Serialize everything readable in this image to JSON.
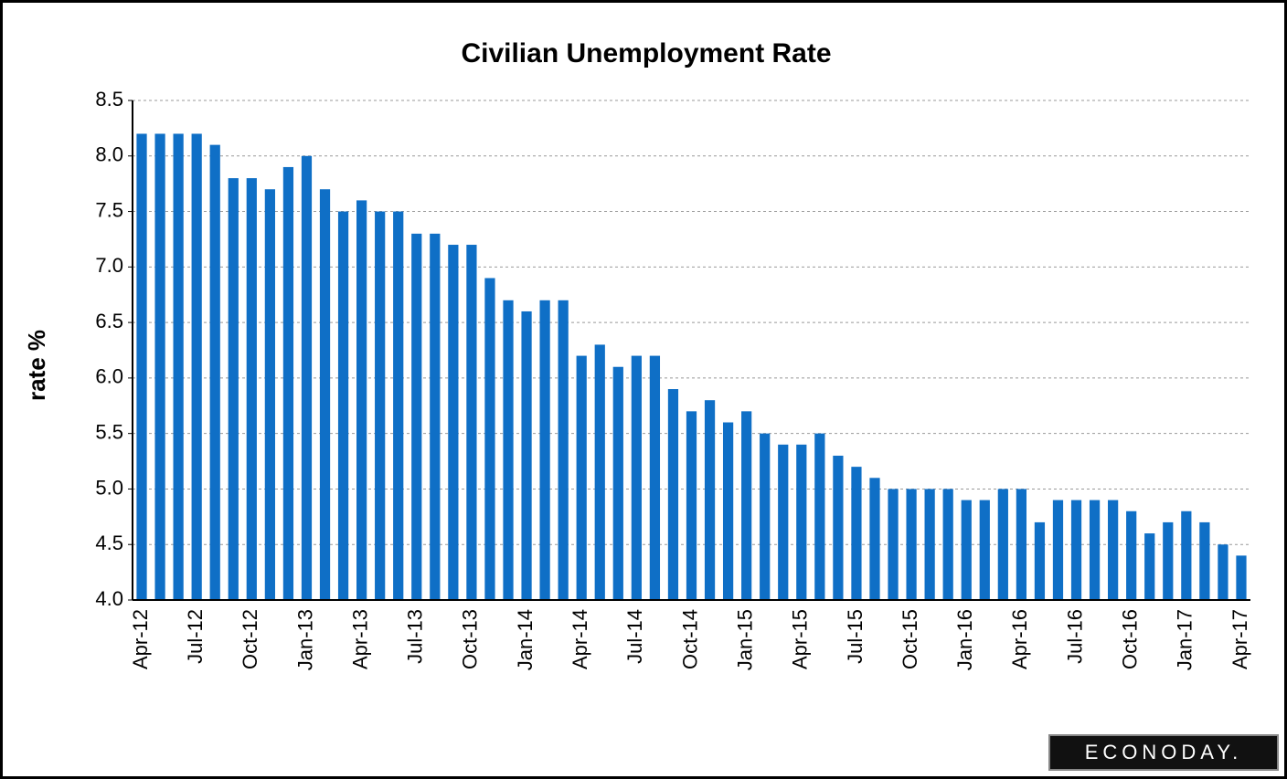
{
  "chart_data": {
    "type": "bar",
    "title": "Civilian Unemployment Rate",
    "y_label": "rate %",
    "logo": "ECONODAY.",
    "categories": [
      "Apr-12",
      null,
      null,
      "Jul-12",
      null,
      null,
      "Oct-12",
      null,
      null,
      "Jan-13",
      null,
      null,
      "Apr-13",
      null,
      null,
      "Jul-13",
      null,
      null,
      "Oct-13",
      null,
      null,
      "Jan-14",
      null,
      null,
      "Apr-14",
      null,
      null,
      "Jul-14",
      null,
      null,
      "Oct-14",
      null,
      null,
      "Jan-15",
      null,
      null,
      "Apr-15",
      null,
      null,
      "Jul-15",
      null,
      null,
      "Oct-15",
      null,
      null,
      "Jan-16",
      null,
      null,
      "Apr-16",
      null,
      null,
      "Jul-16",
      null,
      null,
      "Oct-16",
      null,
      null,
      "Jan-17",
      null,
      null,
      "Apr-17"
    ],
    "values": [
      8.2,
      8.2,
      8.2,
      8.2,
      8.1,
      7.8,
      7.8,
      7.7,
      7.9,
      8.0,
      7.7,
      7.5,
      7.6,
      7.5,
      7.5,
      7.3,
      7.3,
      7.2,
      7.2,
      6.9,
      6.7,
      6.6,
      6.7,
      6.7,
      6.2,
      6.3,
      6.1,
      6.2,
      6.2,
      5.9,
      5.7,
      5.8,
      5.6,
      5.7,
      5.5,
      5.4,
      5.4,
      5.5,
      5.3,
      5.2,
      5.1,
      5.0,
      5.0,
      5.0,
      5.0,
      4.9,
      4.9,
      5.0,
      5.0,
      4.7,
      4.9,
      4.9,
      4.9,
      4.9,
      4.8,
      4.6,
      4.7,
      4.8,
      4.7,
      4.5,
      4.4
    ],
    "color": "#0f6fc6",
    "ylim": [
      4.0,
      8.5
    ],
    "yticks": [
      {
        "value": 4,
        "label": "4.0"
      },
      4.5,
      {
        "value": 5,
        "label": "5.0"
      },
      5.5,
      {
        "value": 6,
        "label": "6.0"
      },
      6.5,
      {
        "value": 7,
        "label": "7.0"
      },
      7.5,
      {
        "value": 8,
        "label": "8.0"
      },
      8.5
    ],
    "grid": true
  }
}
